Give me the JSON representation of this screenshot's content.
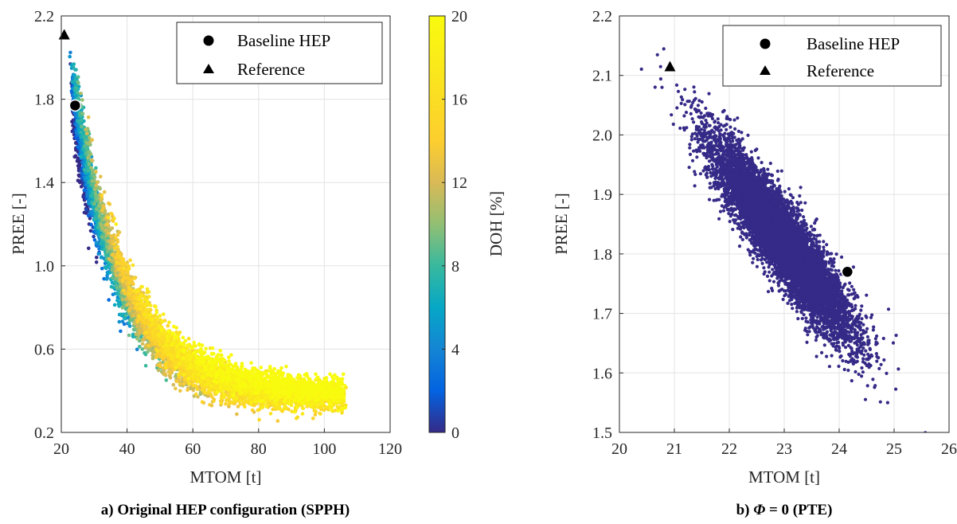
{
  "chart_data": [
    {
      "type": "scatter",
      "caption": "a) Original HEP configuration (SPPH)",
      "xlabel": "MTOM [t]",
      "ylabel": "PREE [-]",
      "xlim": [
        20,
        120
      ],
      "ylim": [
        0.2,
        2.2
      ],
      "xticks": [
        "20",
        "40",
        "60",
        "80",
        "100",
        "120"
      ],
      "yticks": [
        "0.2",
        "0.6",
        "1.0",
        "1.4",
        "1.8",
        "2.2"
      ],
      "grid": true,
      "legend": {
        "placement": "top-right",
        "entries": [
          "Baseline HEP",
          "Reference"
        ]
      },
      "colorbar": {
        "label": "DOH [%]",
        "range": [
          0,
          20
        ],
        "ticks": [
          "0",
          "4",
          "8",
          "12",
          "16",
          "20"
        ],
        "colormap": "parula"
      },
      "cloud": {
        "description_of_trend": "PREE decreases with MTOM following PREE ≈ 0.375 + 1.4*exp(-(MTOM-24)/15); DOH increases with MTOM",
        "points_estimated": 6000,
        "mtom_range": [
          24,
          107
        ],
        "doh_range": [
          0,
          20
        ]
      },
      "special_points": [
        {
          "name": "Baseline HEP",
          "x": 24.2,
          "y": 1.77,
          "marker": "circle"
        },
        {
          "name": "Reference",
          "x": 20.9,
          "y": 2.11,
          "marker": "triangle"
        }
      ]
    },
    {
      "type": "scatter",
      "caption_prefix": "b) ",
      "caption_symbol": "Φ",
      "caption_suffix": " = 0 (PTE)",
      "xlabel": "MTOM [t]",
      "ylabel": "PREE [-]",
      "xlim": [
        20,
        26
      ],
      "ylim": [
        1.5,
        2.2
      ],
      "xticks": [
        "20",
        "21",
        "22",
        "23",
        "24",
        "25",
        "26"
      ],
      "yticks": [
        "1.5",
        "1.6",
        "1.7",
        "1.8",
        "1.9",
        "2.0",
        "2.1",
        "2.2"
      ],
      "grid": true,
      "legend": {
        "placement": "top-right",
        "entries": [
          "Baseline HEP",
          "Reference"
        ]
      },
      "cloud": {
        "color": "#352a87",
        "center": [
          22.95,
          1.825
        ],
        "mtom_range": [
          21.2,
          25.5
        ],
        "pree_range": [
          1.53,
          2.1
        ],
        "correlation": "strong negative",
        "points_estimated": 9000
      },
      "special_points": [
        {
          "name": "Baseline HEP",
          "x": 24.15,
          "y": 1.77,
          "marker": "circle"
        },
        {
          "name": "Reference",
          "x": 20.92,
          "y": 2.115,
          "marker": "triangle"
        }
      ]
    }
  ]
}
